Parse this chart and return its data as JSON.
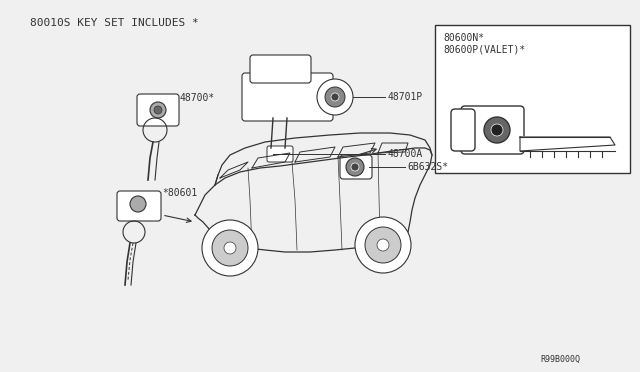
{
  "bg_color": "#f0f0f0",
  "line_color": "#333333",
  "font_size": 7,
  "font_family": "monospace",
  "title_text": "80010S KEY SET INCLUDES *",
  "label_48700": "48700*",
  "label_48701P": "48701P",
  "label_48700A": "48700A",
  "label_80601": "*80601",
  "label_6B632S": "6B632S*",
  "label_80600N": "80600N*",
  "label_80600P": "80600P(VALET)*",
  "label_ref": "R99B000Q"
}
